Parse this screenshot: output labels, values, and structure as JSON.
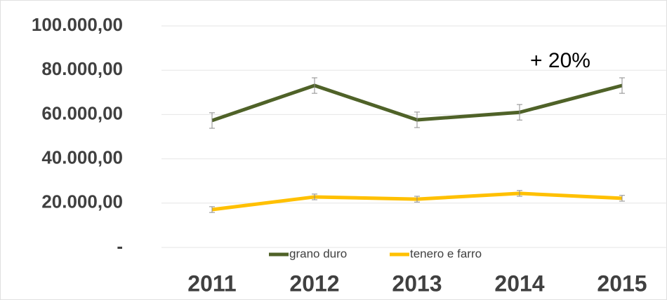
{
  "chart_data": {
    "type": "line",
    "categories": [
      "2011",
      "2012",
      "2013",
      "2014",
      "2015"
    ],
    "series": [
      {
        "name": "grano duro",
        "color": "#4f6228",
        "values": [
          57300,
          73100,
          57600,
          61000,
          73100
        ],
        "errors": [
          3500,
          3500,
          3500,
          3500,
          3500
        ]
      },
      {
        "name": "tenero e farro",
        "color": "#ffc000",
        "values": [
          17100,
          22800,
          21800,
          24400,
          22200
        ],
        "errors": [
          1300,
          1300,
          1300,
          1300,
          1300
        ]
      }
    ],
    "ylim": [
      0,
      100000
    ],
    "yticks": [
      {
        "value": 0,
        "label": "-"
      },
      {
        "value": 20000,
        "label": "20.000,00"
      },
      {
        "value": 40000,
        "label": "40.000,00"
      },
      {
        "value": 60000,
        "label": "60.000,00"
      },
      {
        "value": 80000,
        "label": "80.000,00"
      },
      {
        "value": 100000,
        "label": "100.000,00"
      }
    ],
    "grid": true,
    "legend": "bottom",
    "annotations": [
      {
        "text": "+ 20%"
      }
    ]
  }
}
